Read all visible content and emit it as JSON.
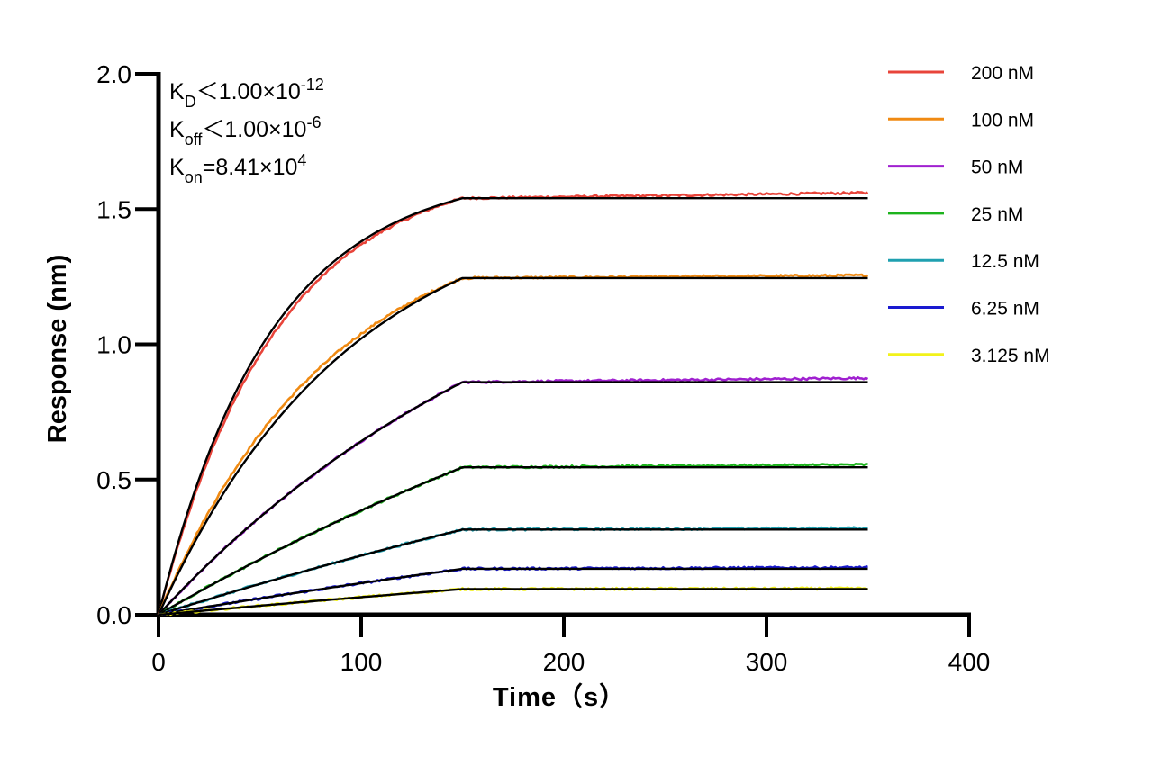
{
  "chart_data": {
    "type": "line",
    "title": "",
    "xlabel": "Time（s）",
    "ylabel": "Response (nm)",
    "xlim": [
      0,
      400
    ],
    "ylim": [
      0,
      2.0
    ],
    "x_ticks": [
      0,
      100,
      200,
      300,
      400
    ],
    "y_ticks": [
      0.0,
      0.5,
      1.0,
      1.5,
      2.0
    ],
    "x_tick_labels": [
      "0",
      "100",
      "200",
      "300",
      "400"
    ],
    "y_tick_labels": [
      "0.0",
      "0.5",
      "1.0",
      "1.5",
      "2.0"
    ],
    "grid": false,
    "legend_position": "top-right",
    "association_end": 150,
    "x_end": 350,
    "fit_color": "#000000",
    "annotations": [
      {
        "base": "K",
        "sub": "D",
        "text": "＜1.00×10",
        "sup": "-12"
      },
      {
        "base": "K",
        "sub": "off",
        "text": "＜1.00×10",
        "sup": "-6"
      },
      {
        "base": "K",
        "sub": "on",
        "text": "=8.41×10",
        "sup": "4"
      }
    ],
    "series": [
      {
        "name": "200 nM",
        "color": "#e8443a",
        "plateau": 1.54,
        "end": 1.56,
        "fit_tau": 55,
        "data_tau": 58
      },
      {
        "name": "100 nM",
        "color": "#f08a12",
        "plateau": 1.245,
        "end": 1.255,
        "fit_tau": 95,
        "data_tau": 85
      },
      {
        "name": "50 nM",
        "color": "#a020d0",
        "plateau": 0.86,
        "end": 0.875,
        "fit_tau": 200,
        "data_tau": 200
      },
      {
        "name": "25 nM",
        "color": "#1db31d",
        "plateau": 0.545,
        "end": 0.555,
        "fit_tau": 400,
        "data_tau": 400
      },
      {
        "name": "12.5 nM",
        "color": "#1fa0b0",
        "plateau": 0.315,
        "end": 0.32,
        "fit_tau": 600,
        "data_tau": 600
      },
      {
        "name": "6.25 nM",
        "color": "#1a1ad0",
        "plateau": 0.17,
        "end": 0.175,
        "fit_tau": 800,
        "data_tau": 800
      },
      {
        "name": "3.125 nM",
        "color": "#f2f21a",
        "plateau": 0.095,
        "end": 0.097,
        "fit_tau": 1000,
        "data_tau": 1000
      }
    ]
  }
}
